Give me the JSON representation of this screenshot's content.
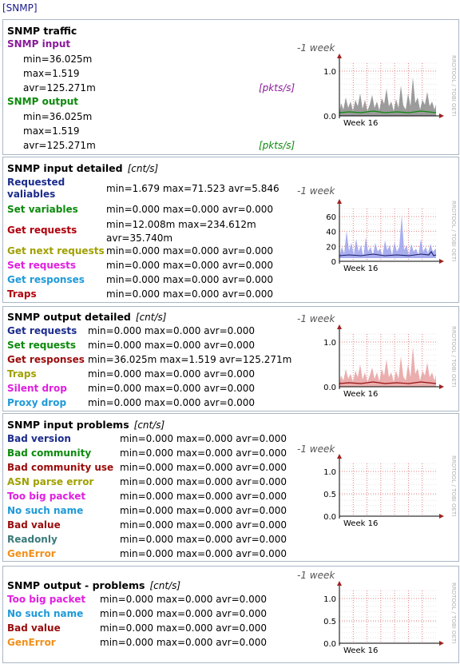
{
  "breadcrumb": "[SNMP]",
  "rrd_watermark": "RRDTOOL / TOBI OETI",
  "x_axis_label": "Week 16",
  "traffic": {
    "title": "SNMP traffic",
    "period": "-1 week",
    "input": {
      "label": "SNMP input",
      "min": "min=36.025m",
      "max": "max=1.519",
      "avr": "avr=125.271m",
      "unit": "[pkts/s]"
    },
    "output": {
      "label": "SNMP output",
      "min": "min=36.025m",
      "max": "max=1.519",
      "avr": "avr=125.271m",
      "unit": "[pkts/s]"
    },
    "yticks": [
      "1.0",
      "0.0"
    ]
  },
  "input_detailed": {
    "title": "SNMP input detailed",
    "unit": "[cnt/s]",
    "period": "-1 week",
    "rows": [
      {
        "label": "Requested valiables",
        "value": "min=1.679 max=71.523 avr=5.846"
      },
      {
        "label": "Set variables",
        "value": "min=0.000 max=0.000 avr=0.000"
      },
      {
        "label": "Get requests",
        "value": "min=12.008m max=234.612m avr=35.740m"
      },
      {
        "label": "Get next requests",
        "value": "min=0.000 max=0.000 avr=0.000"
      },
      {
        "label": "Set requests",
        "value": "min=0.000 max=0.000 avr=0.000"
      },
      {
        "label": "Get responses",
        "value": "min=0.000 max=0.000 avr=0.000"
      },
      {
        "label": "Traps",
        "value": "min=0.000 max=0.000 avr=0.000"
      }
    ],
    "yticks": [
      "60",
      "40",
      "20",
      "0"
    ]
  },
  "output_detailed": {
    "title": "SNMP output detailed",
    "unit": "[cnt/s]",
    "period": "-1 week",
    "rows": [
      {
        "label": "Get requests",
        "value": "min=0.000 max=0.000 avr=0.000"
      },
      {
        "label": "Set requests",
        "value": "min=0.000 max=0.000 avr=0.000"
      },
      {
        "label": "Get responses",
        "value": "min=36.025m max=1.519 avr=125.271m"
      },
      {
        "label": "Traps",
        "value": "min=0.000 max=0.000 avr=0.000"
      },
      {
        "label": "Silent drop",
        "value": "min=0.000 max=0.000 avr=0.000"
      },
      {
        "label": "Proxy drop",
        "value": "min=0.000 max=0.000 avr=0.000"
      }
    ],
    "yticks": [
      "1.0",
      "0.0"
    ]
  },
  "input_problems": {
    "title": "SNMP input problems",
    "unit": "[cnt/s]",
    "period": "-1 week",
    "rows": [
      {
        "label": "Bad version",
        "value": "min=0.000 max=0.000 avr=0.000"
      },
      {
        "label": "Bad community",
        "value": "min=0.000 max=0.000 avr=0.000"
      },
      {
        "label": "Bad community use",
        "value": "min=0.000 max=0.000 avr=0.000"
      },
      {
        "label": "ASN parse error",
        "value": "min=0.000 max=0.000 avr=0.000"
      },
      {
        "label": "Too big packet",
        "value": "min=0.000 max=0.000 avr=0.000"
      },
      {
        "label": "No such name",
        "value": "min=0.000 max=0.000 avr=0.000"
      },
      {
        "label": "Bad value",
        "value": "min=0.000 max=0.000 avr=0.000"
      },
      {
        "label": "Readonly",
        "value": "min=0.000 max=0.000 avr=0.000"
      },
      {
        "label": "GenError",
        "value": "min=0.000 max=0.000 avr=0.000"
      }
    ],
    "yticks": [
      "1.0",
      "0.5",
      "0.0"
    ]
  },
  "output_problems": {
    "title": "SNMP output - problems",
    "unit": "[cnt/s]",
    "period": "-1 week",
    "rows": [
      {
        "label": "Too big packet",
        "value": "min=0.000 max=0.000 avr=0.000"
      },
      {
        "label": "No such name",
        "value": "min=0.000 max=0.000 avr=0.000"
      },
      {
        "label": "Bad value",
        "value": "min=0.000 max=0.000 avr=0.000"
      },
      {
        "label": "GenError",
        "value": "min=0.000 max=0.000 avr=0.000"
      }
    ],
    "yticks": [
      "1.0",
      "0.5",
      "0.0"
    ]
  }
}
